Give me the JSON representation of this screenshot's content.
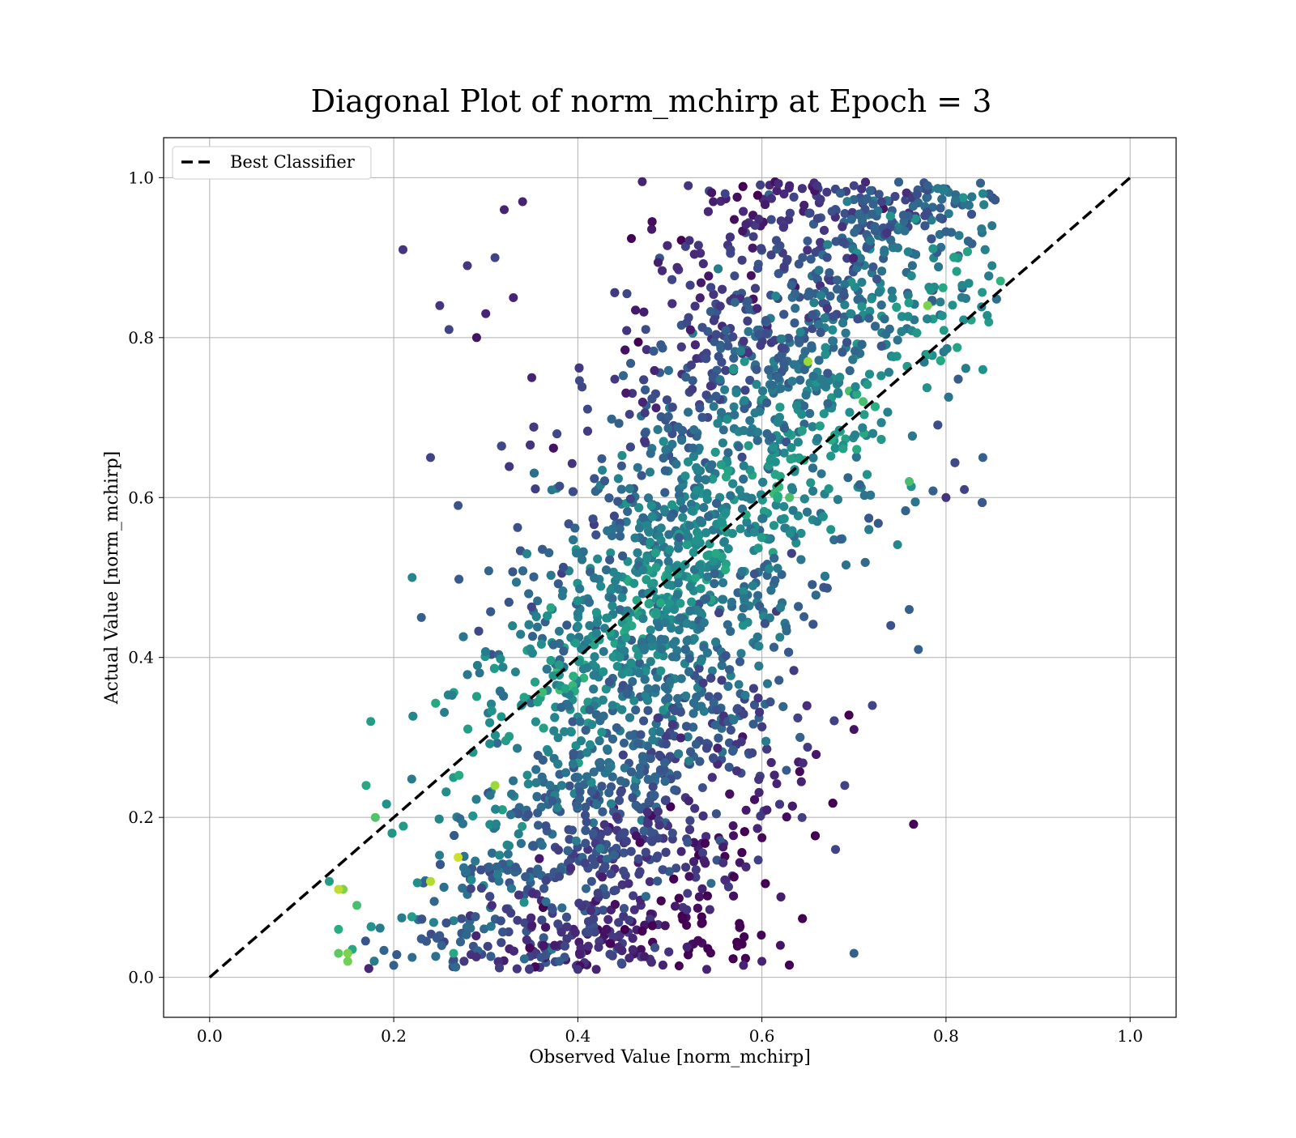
{
  "chart_data": {
    "type": "scatter",
    "title": "Diagonal Plot of norm_mchirp at Epoch = 3",
    "xlabel": "Observed Value [norm_mchirp]",
    "ylabel": "Actual Value [norm_mchirp]",
    "xlim": [
      -0.05,
      1.05
    ],
    "ylim": [
      -0.05,
      1.05
    ],
    "xticks": [
      "0.0",
      "0.2",
      "0.4",
      "0.6",
      "0.8",
      "1.0"
    ],
    "yticks": [
      "0.0",
      "0.2",
      "0.4",
      "0.6",
      "0.8",
      "1.0"
    ],
    "xtick_values": [
      0.0,
      0.2,
      0.4,
      0.6,
      0.8,
      1.0
    ],
    "ytick_values": [
      0.0,
      0.2,
      0.4,
      0.6,
      0.8,
      1.0
    ],
    "grid": true,
    "legend_position": "top-left",
    "legend": [
      {
        "label": "Best Classifier",
        "style": "dashed",
        "color": "#000000"
      }
    ],
    "reference_line": {
      "name": "Best Classifier",
      "x": [
        0.0,
        1.0
      ],
      "y": [
        0.0,
        1.0
      ],
      "color": "#000000",
      "style": "dashed"
    },
    "colormap": "viridis",
    "colormap_stops": [
      "#440154",
      "#472d7b",
      "#3b528b",
      "#2c728e",
      "#21918c",
      "#28ae80",
      "#5ec962",
      "#addc30",
      "#fde725"
    ],
    "points_note_count": 0,
    "points": [
      [
        0.15,
        0.02,
        0.78
      ],
      [
        0.14,
        0.03,
        0.75
      ],
      [
        0.155,
        0.035,
        0.6
      ],
      [
        0.14,
        0.06,
        0.62
      ],
      [
        0.13,
        0.12,
        0.55
      ],
      [
        0.145,
        0.11,
        0.8
      ],
      [
        0.16,
        0.09,
        0.7
      ],
      [
        0.17,
        0.24,
        0.6
      ],
      [
        0.18,
        0.2,
        0.72
      ],
      [
        0.175,
        0.32,
        0.55
      ],
      [
        0.21,
        0.91,
        0.15
      ],
      [
        0.22,
        0.5,
        0.45
      ],
      [
        0.23,
        0.45,
        0.3
      ],
      [
        0.24,
        0.65,
        0.2
      ],
      [
        0.25,
        0.84,
        0.15
      ],
      [
        0.26,
        0.81,
        0.2
      ],
      [
        0.28,
        0.89,
        0.15
      ],
      [
        0.27,
        0.59,
        0.25
      ],
      [
        0.2,
        0.015,
        0.3
      ],
      [
        0.22,
        0.025,
        0.35
      ],
      [
        0.265,
        0.03,
        0.6
      ],
      [
        0.32,
        0.96,
        0.1
      ],
      [
        0.34,
        0.97,
        0.1
      ],
      [
        0.31,
        0.9,
        0.2
      ],
      [
        0.33,
        0.85,
        0.1
      ],
      [
        0.29,
        0.8,
        0.05
      ],
      [
        0.3,
        0.83,
        0.1
      ],
      [
        0.35,
        0.75,
        0.1
      ],
      [
        0.36,
        0.025,
        0.25
      ],
      [
        0.38,
        0.02,
        0.3
      ],
      [
        0.4,
        0.01,
        0.15
      ],
      [
        0.42,
        0.01,
        0.1
      ],
      [
        0.54,
        0.01,
        0.1
      ],
      [
        0.58,
        0.015,
        0.1
      ],
      [
        0.6,
        0.02,
        0.1
      ],
      [
        0.62,
        0.04,
        0.05
      ],
      [
        0.7,
        0.03,
        0.3
      ],
      [
        0.68,
        0.16,
        0.2
      ],
      [
        0.69,
        0.24,
        0.2
      ],
      [
        0.7,
        0.31,
        0.05
      ],
      [
        0.72,
        0.34,
        0.2
      ],
      [
        0.74,
        0.44,
        0.25
      ],
      [
        0.76,
        0.46,
        0.3
      ],
      [
        0.77,
        0.41,
        0.3
      ],
      [
        0.8,
        0.6,
        0.15
      ],
      [
        0.82,
        0.61,
        0.2
      ],
      [
        0.84,
        0.65,
        0.3
      ],
      [
        0.84,
        0.76,
        0.5
      ],
      [
        0.85,
        0.89,
        0.45
      ],
      [
        0.85,
        0.94,
        0.4
      ],
      [
        0.84,
        0.98,
        0.45
      ],
      [
        0.78,
        0.99,
        0.3
      ],
      [
        0.73,
        0.97,
        0.2
      ],
      [
        0.7,
        0.99,
        0.2
      ],
      [
        0.66,
        0.99,
        0.15
      ],
      [
        0.63,
        0.99,
        0.1
      ],
      [
        0.47,
        0.995,
        0.1
      ],
      [
        0.52,
        0.99,
        0.15
      ],
      [
        0.56,
        0.98,
        0.2
      ],
      [
        0.65,
        0.77,
        0.85
      ],
      [
        0.71,
        0.72,
        0.7
      ],
      [
        0.31,
        0.24,
        0.85
      ],
      [
        0.14,
        0.11,
        0.9
      ],
      [
        0.15,
        0.03,
        0.8
      ],
      [
        0.24,
        0.12,
        0.88
      ],
      [
        0.27,
        0.15,
        0.92
      ],
      [
        0.63,
        0.6,
        0.7
      ],
      [
        0.55,
        0.53,
        0.6
      ],
      [
        0.76,
        0.62,
        0.7
      ],
      [
        0.78,
        0.84,
        0.8
      ]
    ]
  }
}
